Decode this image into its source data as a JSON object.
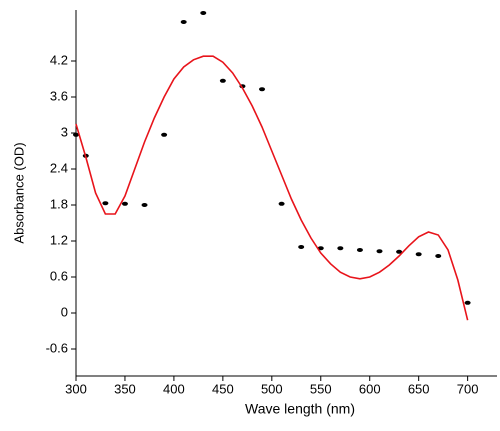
{
  "chart_data": {
    "type": "scatter",
    "xlabel": "Wave length (nm)",
    "ylabel": "Absorbance (OD)",
    "xlim": [
      300,
      730
    ],
    "ylim": [
      -1.05,
      5.05
    ],
    "xticks": [
      300,
      350,
      400,
      450,
      500,
      550,
      600,
      650,
      700
    ],
    "yticks": [
      -0.6,
      0,
      0.6,
      1.2,
      1.8,
      2.4,
      3,
      3.6,
      4.2
    ],
    "series": [
      {
        "color": "#000000",
        "x": [
          300,
          310,
          330,
          350,
          370,
          390,
          410,
          430,
          450,
          470,
          490,
          510,
          530,
          550,
          570,
          590,
          610,
          630,
          650,
          670,
          700
        ],
        "values": [
          2.97,
          2.62,
          1.83,
          1.82,
          1.8,
          2.97,
          4.85,
          5.0,
          3.87,
          3.78,
          3.73,
          1.82,
          1.1,
          1.08,
          1.08,
          1.05,
          1.03,
          1.02,
          0.98,
          0.95,
          0.17
        ]
      },
      {
        "color": "#e8141b",
        "line": true,
        "x": [
          300,
          310,
          320,
          330,
          340,
          350,
          360,
          370,
          380,
          390,
          400,
          410,
          420,
          430,
          440,
          450,
          460,
          470,
          480,
          490,
          500,
          510,
          520,
          530,
          540,
          550,
          560,
          570,
          580,
          590,
          600,
          610,
          620,
          630,
          640,
          650,
          660,
          670,
          680,
          690,
          700
        ],
        "values": [
          3.15,
          2.6,
          2.0,
          1.65,
          1.65,
          1.95,
          2.4,
          2.85,
          3.25,
          3.6,
          3.9,
          4.1,
          4.22,
          4.28,
          4.28,
          4.18,
          4.0,
          3.75,
          3.45,
          3.1,
          2.7,
          2.3,
          1.9,
          1.55,
          1.25,
          1.0,
          0.82,
          0.68,
          0.6,
          0.57,
          0.6,
          0.68,
          0.8,
          0.95,
          1.12,
          1.27,
          1.35,
          1.3,
          1.05,
          0.55,
          -0.12
        ]
      }
    ]
  }
}
